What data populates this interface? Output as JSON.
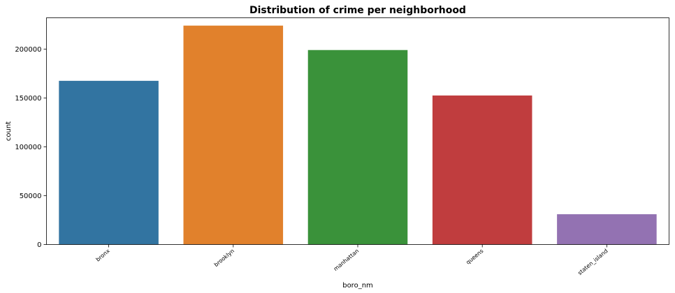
{
  "chart_data": {
    "type": "bar",
    "title": "Distribution of crime per neighborhood",
    "xlabel": "boro_nm",
    "ylabel": "count",
    "categories": [
      "bronx",
      "brooklyn",
      "manhattan",
      "queens",
      "staten_island"
    ],
    "values": [
      167500,
      224000,
      199000,
      152500,
      31000
    ],
    "colors": [
      "#3274a1",
      "#e1812c",
      "#3a923a",
      "#c03d3e",
      "#9372b2"
    ],
    "ylim": [
      0,
      232000
    ],
    "yticks": [
      0,
      50000,
      100000,
      150000,
      200000
    ],
    "grid": false,
    "legend": "none"
  }
}
